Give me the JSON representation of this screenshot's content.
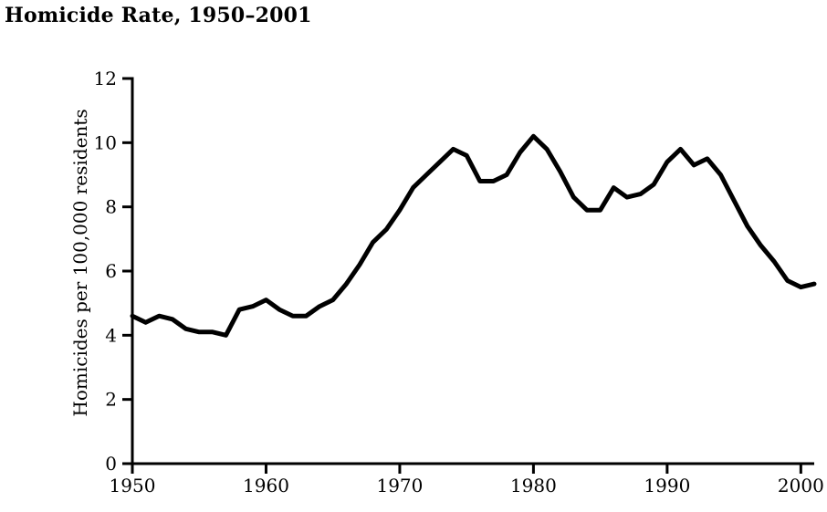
{
  "page": {
    "title": "Homicide Rate, 1950–2001"
  },
  "chart_data": {
    "type": "line",
    "title": "Homicide Rate, 1950–2001",
    "xlabel": "",
    "ylabel": "Homicides per 100,000 residents",
    "series_name": "Homicide rate",
    "x": [
      1950,
      1951,
      1952,
      1953,
      1954,
      1955,
      1956,
      1957,
      1958,
      1959,
      1960,
      1961,
      1962,
      1963,
      1964,
      1965,
      1966,
      1967,
      1968,
      1969,
      1970,
      1971,
      1972,
      1973,
      1974,
      1975,
      1976,
      1977,
      1978,
      1979,
      1980,
      1981,
      1982,
      1983,
      1984,
      1985,
      1986,
      1987,
      1988,
      1989,
      1990,
      1991,
      1992,
      1993,
      1994,
      1995,
      1996,
      1997,
      1998,
      1999,
      2000,
      2001
    ],
    "values": [
      4.6,
      4.4,
      4.6,
      4.5,
      4.2,
      4.1,
      4.1,
      4.0,
      4.8,
      4.9,
      5.1,
      4.8,
      4.6,
      4.6,
      4.9,
      5.1,
      5.6,
      6.2,
      6.9,
      7.3,
      7.9,
      8.6,
      9.0,
      9.4,
      9.8,
      9.6,
      8.8,
      8.8,
      9.0,
      9.7,
      10.2,
      9.8,
      9.1,
      8.3,
      7.9,
      7.9,
      8.6,
      8.3,
      8.4,
      8.7,
      9.4,
      9.8,
      9.3,
      9.5,
      9.0,
      8.2,
      7.4,
      6.8,
      6.3,
      5.7,
      5.5,
      5.6
    ],
    "xlim": [
      1950,
      2001
    ],
    "ylim": [
      0,
      12
    ],
    "xticks": [
      1950,
      1960,
      1970,
      1980,
      1990,
      2000
    ],
    "yticks": [
      0,
      2,
      4,
      6,
      8,
      10,
      12
    ],
    "grid": false,
    "legend_position": "none",
    "line_color": "#000000",
    "axis_color": "#000000",
    "line_width": 5
  }
}
